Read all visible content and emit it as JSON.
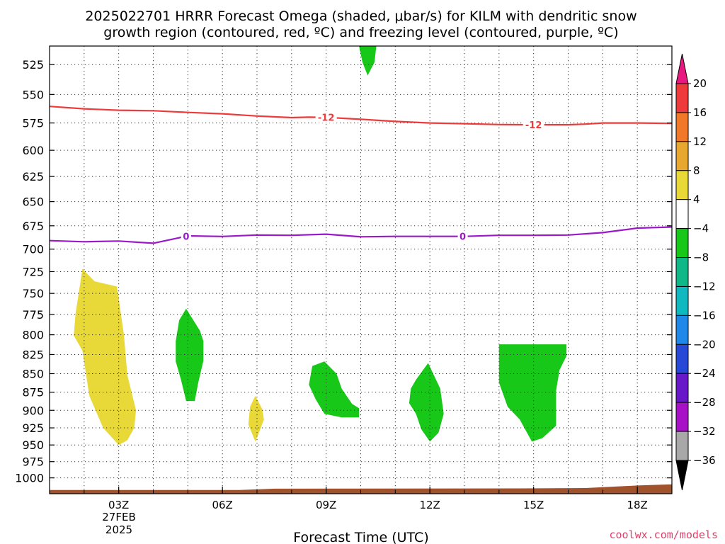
{
  "chart_data": {
    "type": "contour",
    "title_line1": "2025022701 HRRR Forecast Omega (shaded, μbar/s) for KILM with dendritic snow",
    "title_line2": "growth region (contoured, red, ºC) and freezing level (contoured, purple, ºC)",
    "xlabel": "Forecast Time (UTC)",
    "x_range_hours": [
      0,
      18
    ],
    "x_ticks": [
      {
        "hour": 2,
        "label": "03Z"
      },
      {
        "hour": 5,
        "label": "06Z"
      },
      {
        "hour": 8,
        "label": "09Z"
      },
      {
        "hour": 11,
        "label": "12Z"
      },
      {
        "hour": 14,
        "label": "15Z"
      },
      {
        "hour": 17,
        "label": "18Z"
      }
    ],
    "date_label_line1": "27FEB",
    "date_label_line2": "2025",
    "y_scale": "log-pressure",
    "y_range_mb": [
      510,
      1025
    ],
    "y_ticks": [
      525,
      550,
      575,
      600,
      625,
      650,
      675,
      700,
      725,
      750,
      775,
      800,
      825,
      850,
      875,
      900,
      925,
      950,
      975,
      1000
    ],
    "grid": true,
    "colorbar": {
      "levels": [
        "20",
        "16",
        "12",
        "8",
        "4",
        "−4",
        "−8",
        "−12",
        "−16",
        "−20",
        "−24",
        "−28",
        "−32",
        "−36"
      ],
      "colors": [
        "#ee3a3a",
        "#f07828",
        "#e8a830",
        "#e8d838",
        "#ffffff",
        "#18c818",
        "#10b888",
        "#10b8c0",
        "#2088e8",
        "#2848d8",
        "#6818c8",
        "#a810c8",
        "#a8a8a8"
      ],
      "top_arrow_color": "#e81880",
      "bottom_arrow_color": "#000000"
    },
    "contours": [
      {
        "name": "-12",
        "color": "#ee3a3a",
        "label_positions_hours": [
          8.0,
          14.0
        ],
        "points": [
          [
            0.0,
            560.3
          ],
          [
            1.0,
            562.4
          ],
          [
            2.0,
            563.7
          ],
          [
            3.0,
            564.1
          ],
          [
            4.0,
            565.6
          ],
          [
            5.0,
            566.8
          ],
          [
            6.0,
            568.8
          ],
          [
            7.0,
            570.2
          ],
          [
            7.5,
            569.8
          ],
          [
            8.0,
            570.0
          ],
          [
            9.0,
            571.7
          ],
          [
            10.0,
            573.6
          ],
          [
            11.0,
            575.0
          ],
          [
            12.0,
            575.6
          ],
          [
            13.0,
            576.4
          ],
          [
            14.0,
            576.6
          ],
          [
            15.0,
            576.6
          ],
          [
            15.5,
            576.0
          ],
          [
            16.0,
            575.0
          ],
          [
            17.0,
            575.0
          ],
          [
            18.0,
            575.4
          ]
        ]
      },
      {
        "name": "0",
        "color": "#9a18c8",
        "label_positions_hours": [
          3.95,
          11.95
        ],
        "points": [
          [
            0.0,
            690.8
          ],
          [
            1.0,
            692.0
          ],
          [
            2.0,
            691.2
          ],
          [
            3.0,
            693.6
          ],
          [
            4.0,
            685.7
          ],
          [
            5.0,
            686.3
          ],
          [
            6.0,
            684.8
          ],
          [
            7.0,
            685.1
          ],
          [
            8.0,
            683.9
          ],
          [
            9.0,
            686.7
          ],
          [
            10.0,
            686.2
          ],
          [
            11.0,
            686.2
          ],
          [
            12.0,
            686.2
          ],
          [
            13.0,
            685.1
          ],
          [
            14.0,
            685.1
          ],
          [
            15.0,
            684.8
          ],
          [
            16.0,
            682.2
          ],
          [
            17.0,
            677.4
          ],
          [
            18.0,
            676.3
          ]
        ]
      }
    ],
    "omega_regions": [
      {
        "value_band": "4 to 8",
        "color": "#e8d838",
        "points": [
          [
            0.95,
            722
          ],
          [
            1.3,
            736
          ],
          [
            1.95,
            742
          ],
          [
            2.15,
            800
          ],
          [
            2.25,
            852
          ],
          [
            2.5,
            900
          ],
          [
            2.45,
            925
          ],
          [
            2.25,
            943
          ],
          [
            2.0,
            950
          ],
          [
            1.55,
            925
          ],
          [
            1.15,
            880
          ],
          [
            0.95,
            820
          ],
          [
            0.7,
            801
          ],
          [
            0.75,
            775
          ]
        ]
      },
      {
        "value_band": "4 to 8",
        "color": "#e8d838",
        "points": [
          [
            5.95,
            880
          ],
          [
            6.15,
            898
          ],
          [
            6.2,
            913
          ],
          [
            6.05,
            933
          ],
          [
            5.95,
            945
          ],
          [
            5.75,
            920
          ],
          [
            5.8,
            895
          ]
        ]
      },
      {
        "value_band": "-4 to -8",
        "color": "#18c818",
        "points": [
          [
            3.95,
            768
          ],
          [
            4.35,
            795
          ],
          [
            4.45,
            808
          ],
          [
            4.45,
            833
          ],
          [
            4.3,
            862
          ],
          [
            4.2,
            887
          ],
          [
            3.95,
            887
          ],
          [
            3.8,
            858
          ],
          [
            3.65,
            834
          ],
          [
            3.65,
            808
          ],
          [
            3.75,
            782
          ]
        ]
      },
      {
        "value_band": "-4 to -8",
        "color": "#18c818",
        "points": [
          [
            7.95,
            834
          ],
          [
            8.3,
            850
          ],
          [
            8.45,
            870
          ],
          [
            8.75,
            891
          ],
          [
            8.95,
            897
          ],
          [
            8.95,
            910
          ],
          [
            8.45,
            910
          ],
          [
            7.95,
            905
          ],
          [
            7.7,
            885
          ],
          [
            7.5,
            865
          ],
          [
            7.6,
            840
          ]
        ]
      },
      {
        "value_band": "-4 to -8",
        "color": "#18c818",
        "points": [
          [
            10.95,
            836
          ],
          [
            11.3,
            870
          ],
          [
            11.4,
            905
          ],
          [
            11.25,
            932
          ],
          [
            11.0,
            945
          ],
          [
            10.75,
            927
          ],
          [
            10.6,
            905
          ],
          [
            10.4,
            890
          ],
          [
            10.45,
            870
          ],
          [
            10.6,
            858
          ]
        ]
      },
      {
        "value_band": "-4 to -8",
        "color": "#18c818",
        "points": [
          [
            13.0,
            812
          ],
          [
            14.95,
            812
          ],
          [
            14.95,
            827
          ],
          [
            14.75,
            845
          ],
          [
            14.65,
            873
          ],
          [
            14.65,
            922
          ],
          [
            14.25,
            940
          ],
          [
            13.95,
            945
          ],
          [
            13.6,
            913
          ],
          [
            13.25,
            895
          ],
          [
            13.0,
            862
          ]
        ]
      },
      {
        "value_band": "-4 to -8",
        "color": "#18c818",
        "points": [
          [
            8.95,
            510
          ],
          [
            9.45,
            510
          ],
          [
            9.4,
            523
          ],
          [
            9.2,
            534
          ],
          [
            9.05,
            523
          ]
        ]
      }
    ],
    "terrain": {
      "color": "#a0522d",
      "top_mb": [
        [
          0.0,
          1019
        ],
        [
          5.5,
          1019
        ],
        [
          6.5,
          1017
        ],
        [
          13.5,
          1016.5
        ],
        [
          15.5,
          1016
        ],
        [
          17.0,
          1012
        ],
        [
          18.0,
          1010
        ]
      ]
    }
  },
  "credit": "coolwx.com/models"
}
